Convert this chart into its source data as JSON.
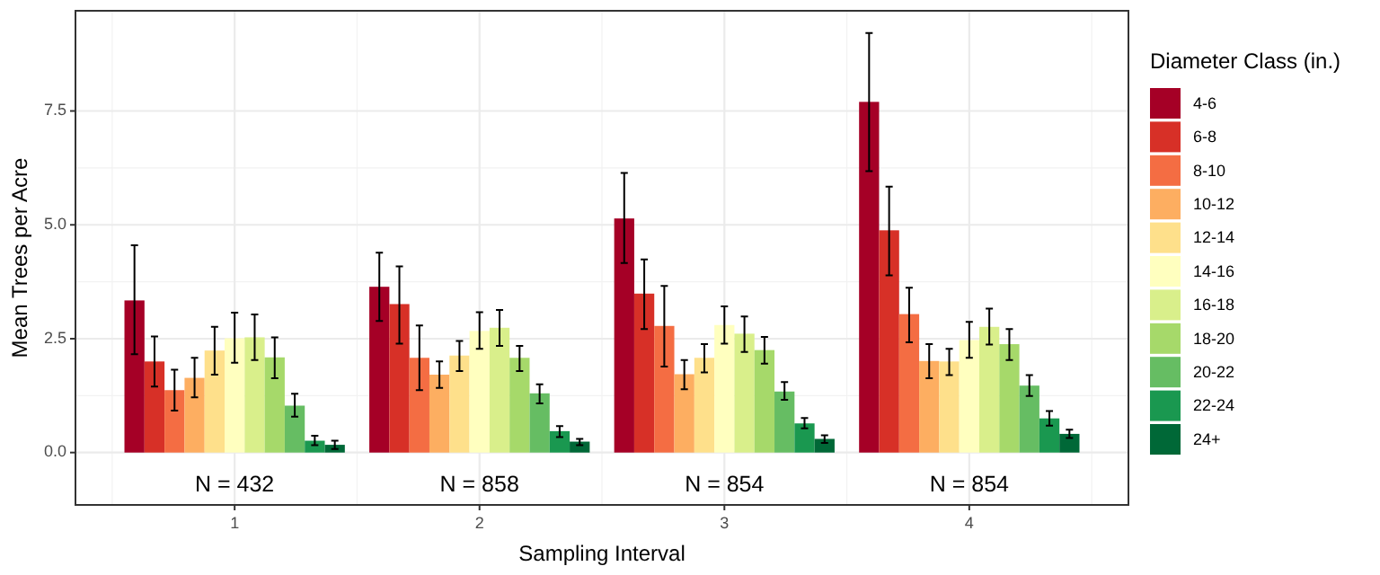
{
  "chart_data": {
    "type": "bar",
    "xlabel": "Sampling Interval",
    "ylabel": "Mean Trees per Acre",
    "legend_title": "Diameter Class (in.)",
    "legend": "right",
    "grid": true,
    "categories": [
      "1",
      "2",
      "3",
      "4"
    ],
    "ylim": [
      -1.15,
      9.7
    ],
    "yticks": [
      {
        "value": 0,
        "label": "0.0"
      },
      {
        "value": 2.5,
        "label": "2.5"
      },
      {
        "value": 5,
        "label": "5.0"
      },
      {
        "value": 7.5,
        "label": "7.5"
      }
    ],
    "annotations": [
      "N = 432",
      "N = 858",
      "N = 854",
      "N = 854"
    ],
    "series": [
      {
        "name": "4-6",
        "color": "#a50026",
        "values": [
          3.34,
          3.64,
          5.14,
          7.7
        ],
        "errors": [
          [
            2.16,
            4.55
          ],
          [
            2.89,
            4.39
          ],
          [
            4.16,
            6.14
          ],
          [
            6.18,
            9.21
          ]
        ]
      },
      {
        "name": "6-8",
        "color": "#d73027",
        "values": [
          2.0,
          3.26,
          3.49,
          4.88
        ],
        "errors": [
          [
            1.45,
            2.55
          ],
          [
            2.39,
            4.09
          ],
          [
            2.71,
            4.24
          ],
          [
            3.89,
            5.84
          ]
        ]
      },
      {
        "name": "8-10",
        "color": "#f46d43",
        "values": [
          1.37,
          2.08,
          2.78,
          3.04
        ],
        "errors": [
          [
            0.92,
            1.82
          ],
          [
            1.37,
            2.79
          ],
          [
            1.89,
            3.66
          ],
          [
            2.42,
            3.62
          ]
        ]
      },
      {
        "name": "10-12",
        "color": "#fdae61",
        "values": [
          1.64,
          1.71,
          1.72,
          2.01
        ],
        "errors": [
          [
            1.21,
            2.08
          ],
          [
            1.42,
            2.0
          ],
          [
            1.39,
            2.03
          ],
          [
            1.63,
            2.38
          ]
        ]
      },
      {
        "name": "12-14",
        "color": "#fee08b",
        "values": [
          2.24,
          2.13,
          2.08,
          2.0
        ],
        "errors": [
          [
            1.71,
            2.76
          ],
          [
            1.79,
            2.45
          ],
          [
            1.76,
            2.38
          ],
          [
            1.7,
            2.28
          ]
        ]
      },
      {
        "name": "14-16",
        "color": "#ffffbf",
        "values": [
          2.51,
          2.67,
          2.8,
          2.47
        ],
        "errors": [
          [
            1.97,
            3.07
          ],
          [
            2.28,
            3.08
          ],
          [
            2.39,
            3.21
          ],
          [
            2.08,
            2.87
          ]
        ]
      },
      {
        "name": "16-18",
        "color": "#d9ef8b",
        "values": [
          2.53,
          2.74,
          2.61,
          2.76
        ],
        "errors": [
          [
            2.03,
            3.03
          ],
          [
            2.34,
            3.13
          ],
          [
            2.21,
            2.99
          ],
          [
            2.37,
            3.16
          ]
        ]
      },
      {
        "name": "18-20",
        "color": "#a6d96a",
        "values": [
          2.09,
          2.08,
          2.25,
          2.38
        ],
        "errors": [
          [
            1.63,
            2.53
          ],
          [
            1.79,
            2.34
          ],
          [
            1.95,
            2.54
          ],
          [
            2.03,
            2.71
          ]
        ]
      },
      {
        "name": "20-22",
        "color": "#66bd63",
        "values": [
          1.03,
          1.3,
          1.34,
          1.47
        ],
        "errors": [
          [
            0.79,
            1.29
          ],
          [
            1.08,
            1.5
          ],
          [
            1.16,
            1.55
          ],
          [
            1.24,
            1.7
          ]
        ]
      },
      {
        "name": "22-24",
        "color": "#1a9850",
        "values": [
          0.26,
          0.47,
          0.64,
          0.75
        ],
        "errors": [
          [
            0.16,
            0.37
          ],
          [
            0.34,
            0.58
          ],
          [
            0.53,
            0.76
          ],
          [
            0.59,
            0.91
          ]
        ]
      },
      {
        "name": "24+",
        "color": "#006837",
        "values": [
          0.17,
          0.24,
          0.3,
          0.41
        ],
        "errors": [
          [
            0.08,
            0.26
          ],
          [
            0.16,
            0.3
          ],
          [
            0.21,
            0.38
          ],
          [
            0.32,
            0.5
          ]
        ]
      }
    ]
  }
}
